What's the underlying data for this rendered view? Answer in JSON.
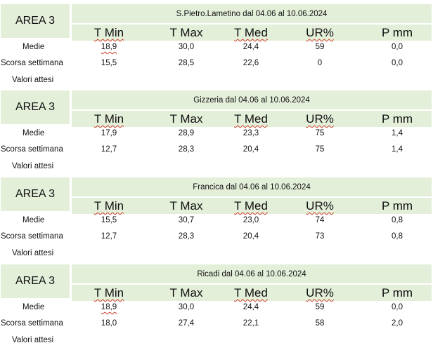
{
  "columns": [
    "T Min",
    "T Max",
    "T Med",
    "UR%",
    "P mm"
  ],
  "blocks": [
    {
      "area": "AREA 3",
      "title": "S.Pietro.Lametino dal 04.06 al 10.06.2024",
      "rows": [
        {
          "label": "Medie",
          "values": [
            "18,9",
            "30,0",
            "24,4",
            "59",
            "0,0"
          ]
        },
        {
          "label": "Scorsa settimana",
          "values": [
            "15,5",
            "28,5",
            "22,6",
            "0",
            "0,0"
          ]
        }
      ],
      "expected_label": "Valori attesi"
    },
    {
      "area": "AREA 3",
      "title": "Gizzeria dal 04.06 al 10.06.2024",
      "rows": [
        {
          "label": "Medie",
          "values": [
            "17,9",
            "28,9",
            "23,3",
            "75",
            "1,4"
          ]
        },
        {
          "label": "Scorsa settimana",
          "values": [
            "12,7",
            "28,3",
            "20,4",
            "75",
            "1,4"
          ]
        }
      ],
      "expected_label": "Valori attesi"
    },
    {
      "area": "AREA 3",
      "title": "Francica dal 04.06 al 10.06.2024",
      "rows": [
        {
          "label": "Medie",
          "values": [
            "15,5",
            "30,7",
            "23,0",
            "74",
            "0,8"
          ]
        },
        {
          "label": "Scorsa settimana",
          "values": [
            "12,7",
            "28,3",
            "20,4",
            "73",
            "0,8"
          ]
        }
      ],
      "expected_label": "Valori attesi"
    },
    {
      "area": "AREA 3",
      "title": "Ricadi  dal 04.06 al 10.06.2024",
      "rows": [
        {
          "label": "Medie",
          "values": [
            "18,9",
            "30,0",
            "24,4",
            "59",
            "0,0"
          ]
        },
        {
          "label": "Scorsa settimana",
          "values": [
            "18,0",
            "27,4",
            "22,1",
            "58",
            "2,0"
          ]
        }
      ],
      "expected_label": "Valori attesi"
    }
  ]
}
